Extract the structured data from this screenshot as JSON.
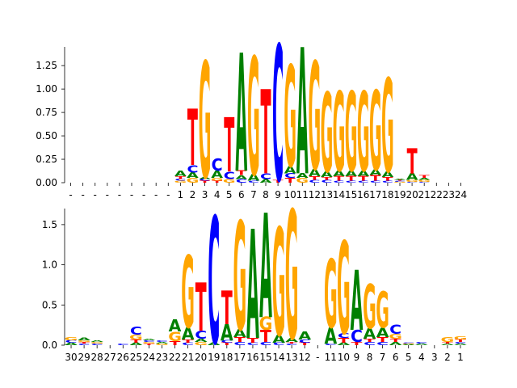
{
  "chart_data": [
    {
      "type": "sequence_logo",
      "title": "",
      "xlabel": "",
      "ylabel": "",
      "ylim": [
        0,
        1.45
      ],
      "yticks": [
        0.0,
        0.25,
        0.5,
        0.75,
        1.0,
        1.25
      ],
      "ytick_labels": [
        "0.00",
        "0.25",
        "0.50",
        "0.75",
        "1.00",
        "1.25"
      ],
      "positions": [
        "-",
        "-",
        "-",
        "-",
        "-",
        "-",
        "-",
        "-",
        "-",
        "1",
        "2",
        "3",
        "4",
        "5",
        "6",
        "7",
        "8",
        "9",
        "10",
        "11",
        "12",
        "13",
        "14",
        "15",
        "16",
        "17",
        "18",
        "19",
        "20",
        "21",
        "22",
        "23",
        "24"
      ],
      "letter_colors": {
        "A": "#008000",
        "C": "#0000ff",
        "G": "#ffa500",
        "T": "#ff0000"
      },
      "stacks": [
        [],
        [],
        [],
        [],
        [],
        [],
        [],
        [],
        [],
        [
          [
            "G",
            0.02
          ],
          [
            "C",
            0.02
          ],
          [
            "T",
            0.03
          ],
          [
            "A",
            0.06
          ]
        ],
        [
          [
            "G",
            0.05
          ],
          [
            "A",
            0.06
          ],
          [
            "C",
            0.08
          ],
          [
            "T",
            0.6
          ]
        ],
        [
          [
            "T",
            0.02
          ],
          [
            "C",
            0.02
          ],
          [
            "A",
            0.02
          ],
          [
            "G",
            1.24
          ]
        ],
        [
          [
            "T",
            0.02
          ],
          [
            "G",
            0.03
          ],
          [
            "A",
            0.08
          ],
          [
            "C",
            0.13
          ]
        ],
        [
          [
            "G",
            0.04
          ],
          [
            "C",
            0.08
          ],
          [
            "T",
            0.58
          ]
        ],
        [
          [
            "C",
            0.04
          ],
          [
            "A",
            0.04
          ],
          [
            "T",
            0.05
          ],
          [
            "A",
            1.26
          ]
        ],
        [
          [
            "C",
            0.02
          ],
          [
            "A",
            0.07
          ],
          [
            "G",
            1.26
          ]
        ],
        [
          [
            "A",
            0.04
          ],
          [
            "C",
            0.06
          ],
          [
            "T",
            0.9
          ]
        ],
        [
          [
            "T",
            0.03
          ],
          [
            "C",
            1.45
          ]
        ],
        [
          [
            "T",
            0.05
          ],
          [
            "C",
            0.05
          ],
          [
            "A",
            0.08
          ],
          [
            "G",
            1.08
          ]
        ],
        [
          [
            "G",
            0.05
          ],
          [
            "A",
            0.05
          ],
          [
            "A",
            1.35
          ]
        ],
        [
          [
            "C",
            0.03
          ],
          [
            "T",
            0.04
          ],
          [
            "A",
            0.08
          ],
          [
            "G",
            1.15
          ]
        ],
        [
          [
            "C",
            0.03
          ],
          [
            "T",
            0.03
          ],
          [
            "A",
            0.06
          ],
          [
            "G",
            0.85
          ]
        ],
        [
          [
            "C",
            0.02
          ],
          [
            "T",
            0.05
          ],
          [
            "A",
            0.06
          ],
          [
            "G",
            0.85
          ]
        ],
        [
          [
            "C",
            0.02
          ],
          [
            "T",
            0.05
          ],
          [
            "A",
            0.06
          ],
          [
            "G",
            0.85
          ]
        ],
        [
          [
            "C",
            0.02
          ],
          [
            "T",
            0.05
          ],
          [
            "A",
            0.06
          ],
          [
            "G",
            0.85
          ]
        ],
        [
          [
            "C",
            0.02
          ],
          [
            "T",
            0.06
          ],
          [
            "A",
            0.06
          ],
          [
            "G",
            0.85
          ]
        ],
        [
          [
            "C",
            0.02
          ],
          [
            "T",
            0.04
          ],
          [
            "A",
            0.06
          ],
          [
            "G",
            1.0
          ]
        ],
        [
          [
            "G",
            0.01
          ],
          [
            "C",
            0.01
          ],
          [
            "T",
            0.01
          ],
          [
            "A",
            0.01
          ]
        ],
        [
          [
            "C",
            0.01
          ],
          [
            "G",
            0.02
          ],
          [
            "A",
            0.07
          ],
          [
            "T",
            0.27
          ]
        ],
        [
          [
            "C",
            0.01
          ],
          [
            "G",
            0.02
          ],
          [
            "A",
            0.02
          ],
          [
            "T",
            0.03
          ]
        ]
      ]
    },
    {
      "type": "sequence_logo",
      "title": "",
      "xlabel": "",
      "ylabel": "",
      "ylim": [
        0,
        1.7
      ],
      "yticks": [
        0.0,
        0.5,
        1.0,
        1.5
      ],
      "ytick_labels": [
        "0.0",
        "0.5",
        "1.0",
        "1.5"
      ],
      "positions": [
        "30",
        "29",
        "28",
        "27",
        "26",
        "25",
        "24",
        "23",
        "22",
        "21",
        "20",
        "19",
        "18",
        "17",
        "16",
        "15",
        "14",
        "13",
        "12",
        "-",
        "11",
        "10",
        "9",
        "8",
        "7",
        "6",
        "5",
        "4",
        "3",
        "2",
        "1"
      ],
      "letter_colors": {
        "A": "#008000",
        "C": "#0000ff",
        "G": "#ffa500",
        "T": "#ff0000"
      },
      "stacks": [
        [
          [
            "A",
            0.03
          ],
          [
            "C",
            0.03
          ],
          [
            "G",
            0.04
          ]
        ],
        [
          [
            "C",
            0.02
          ],
          [
            "T",
            0.02
          ],
          [
            "G",
            0.02
          ],
          [
            "A",
            0.03
          ]
        ],
        [
          [
            "C",
            0.02
          ],
          [
            "G",
            0.02
          ],
          [
            "A",
            0.02
          ]
        ],
        [],
        [
          [
            "C",
            0.02
          ]
        ],
        [
          [
            "A",
            0.03
          ],
          [
            "T",
            0.04
          ],
          [
            "G",
            0.06
          ],
          [
            "C",
            0.1
          ]
        ],
        [
          [
            "T",
            0.02
          ],
          [
            "G",
            0.02
          ],
          [
            "C",
            0.02
          ],
          [
            "A",
            0.02
          ]
        ],
        [
          [
            "G",
            0.02
          ],
          [
            "A",
            0.02
          ],
          [
            "C",
            0.02
          ]
        ],
        [
          [
            "T",
            0.05
          ],
          [
            "G",
            0.12
          ],
          [
            "A",
            0.15
          ]
        ],
        [
          [
            "C",
            0.03
          ],
          [
            "T",
            0.04
          ],
          [
            "A",
            0.15
          ],
          [
            "G",
            0.9
          ]
        ],
        [
          [
            "G",
            0.04
          ],
          [
            "A",
            0.04
          ],
          [
            "C",
            0.1
          ],
          [
            "T",
            0.6
          ]
        ],
        [
          [
            "A",
            0.03
          ],
          [
            "C",
            1.58
          ]
        ],
        [
          [
            "T",
            0.03
          ],
          [
            "C",
            0.03
          ],
          [
            "A",
            0.2
          ],
          [
            "T",
            0.42
          ]
        ],
        [
          [
            "C",
            0.04
          ],
          [
            "T",
            0.06
          ],
          [
            "A",
            0.1
          ],
          [
            "G",
            1.35
          ]
        ],
        [
          [
            "C",
            0.03
          ],
          [
            "T",
            0.06
          ],
          [
            "A",
            1.36
          ]
        ],
        [
          [
            "C",
            0.04
          ],
          [
            "T",
            0.15
          ],
          [
            "G",
            0.16
          ],
          [
            "A",
            1.3
          ]
        ],
        [
          [
            "C",
            0.03
          ],
          [
            "A",
            0.1
          ],
          [
            "G",
            1.34
          ]
        ],
        [
          [
            "C",
            0.02
          ],
          [
            "T",
            0.02
          ],
          [
            "A",
            0.05
          ],
          [
            "G",
            1.6
          ]
        ],
        [
          [
            "T",
            0.03
          ],
          [
            "C",
            0.04
          ],
          [
            "A",
            0.1
          ]
        ],
        [],
        [
          [
            "C",
            0.02
          ],
          [
            "A",
            0.2
          ],
          [
            "G",
            0.85
          ]
        ],
        [
          [
            "A",
            0.03
          ],
          [
            "T",
            0.06
          ],
          [
            "C",
            0.06
          ],
          [
            "G",
            1.15
          ]
        ],
        [
          [
            "T",
            0.04
          ],
          [
            "C",
            0.15
          ],
          [
            "A",
            0.75
          ]
        ],
        [
          [
            "C",
            0.04
          ],
          [
            "T",
            0.04
          ],
          [
            "A",
            0.13
          ],
          [
            "G",
            0.55
          ]
        ],
        [
          [
            "C",
            0.04
          ],
          [
            "T",
            0.06
          ],
          [
            "A",
            0.12
          ],
          [
            "G",
            0.45
          ]
        ],
        [
          [
            "A",
            0.04
          ],
          [
            "T",
            0.04
          ],
          [
            "G",
            0.06
          ],
          [
            "C",
            0.12
          ]
        ],
        [
          [
            "A",
            0.01
          ],
          [
            "G",
            0.01
          ],
          [
            "C",
            0.01
          ]
        ],
        [
          [
            "A",
            0.02
          ],
          [
            "C",
            0.02
          ]
        ],
        [],
        [
          [
            "A",
            0.02
          ],
          [
            "T",
            0.02
          ],
          [
            "G",
            0.06
          ]
        ],
        [
          [
            "A",
            0.02
          ],
          [
            "C",
            0.02
          ],
          [
            "T",
            0.03
          ],
          [
            "G",
            0.04
          ]
        ]
      ]
    }
  ]
}
